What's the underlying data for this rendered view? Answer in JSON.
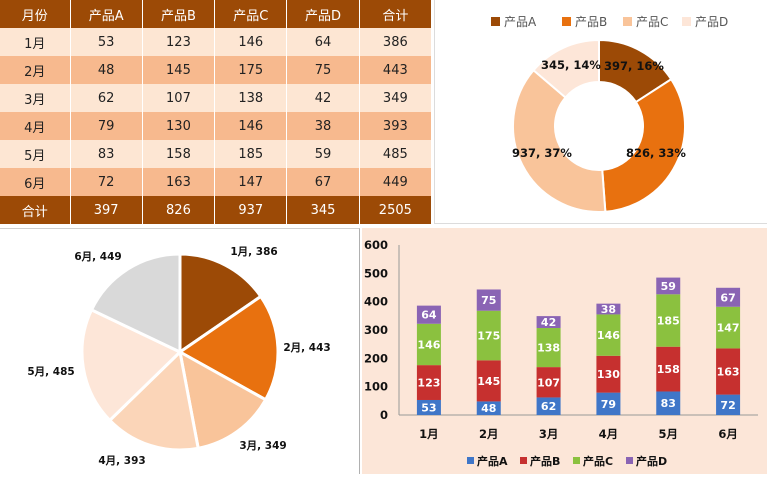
{
  "table": {
    "headers": [
      "月份",
      "产品A",
      "产品B",
      "产品C",
      "产品D",
      "合计"
    ],
    "rows": [
      [
        "1月",
        "53",
        "123",
        "146",
        "64",
        "386"
      ],
      [
        "2月",
        "48",
        "145",
        "175",
        "75",
        "443"
      ],
      [
        "3月",
        "62",
        "107",
        "138",
        "42",
        "349"
      ],
      [
        "4月",
        "79",
        "130",
        "146",
        "38",
        "393"
      ],
      [
        "5月",
        "83",
        "158",
        "185",
        "59",
        "485"
      ],
      [
        "6月",
        "72",
        "163",
        "147",
        "67",
        "449"
      ]
    ],
    "total_row": [
      "合计",
      "397",
      "826",
      "937",
      "345",
      "2505"
    ]
  },
  "colors": {
    "header_bg": "#9c4a06",
    "row_light": "#fde6d3",
    "row_dark": "#f7b98e",
    "series_A": "#3f76c8",
    "series_B": "#c6302f",
    "series_C": "#8bc13f",
    "series_D": "#8a64b4"
  },
  "chart_data": [
    {
      "type": "pie",
      "variant": "donut",
      "categories": [
        "产品A",
        "产品B",
        "产品C",
        "产品D"
      ],
      "values": [
        397,
        826,
        937,
        345
      ],
      "labels": [
        "397, 16%",
        "826, 33%",
        "937, 37%",
        "345, 14%"
      ],
      "colors": [
        "#9c4a06",
        "#e8710f",
        "#f9c49a",
        "#fde6d8"
      ],
      "legend": "top"
    },
    {
      "type": "pie",
      "categories": [
        "1月",
        "2月",
        "3月",
        "4月",
        "5月",
        "6月"
      ],
      "values": [
        386,
        443,
        349,
        393,
        485,
        449
      ],
      "labels": [
        "1月, 386",
        "2月, 443",
        "3月, 349",
        "4月, 393",
        "5月, 485",
        "6月, 449"
      ],
      "colors": [
        "#9c4a06",
        "#e8710f",
        "#f9c49a",
        "#fbd5b8",
        "#fde6d8",
        "#d9d9d9"
      ]
    },
    {
      "type": "bar",
      "stacked": true,
      "categories": [
        "1月",
        "2月",
        "3月",
        "4月",
        "5月",
        "6月"
      ],
      "series": [
        {
          "name": "产品A",
          "values": [
            53,
            48,
            62,
            79,
            83,
            72
          ],
          "color": "#3f76c8"
        },
        {
          "name": "产品B",
          "values": [
            123,
            145,
            107,
            130,
            158,
            163
          ],
          "color": "#c6302f"
        },
        {
          "name": "产品C",
          "values": [
            146,
            175,
            138,
            146,
            185,
            147
          ],
          "color": "#8bc13f"
        },
        {
          "name": "产品D",
          "values": [
            64,
            75,
            42,
            38,
            59,
            67
          ],
          "color": "#8a64b4"
        }
      ],
      "ylim": [
        0,
        600
      ],
      "yticks": [
        "0",
        "100",
        "200",
        "300",
        "400",
        "500",
        "600"
      ],
      "grid": false,
      "legend": "bottom"
    }
  ]
}
